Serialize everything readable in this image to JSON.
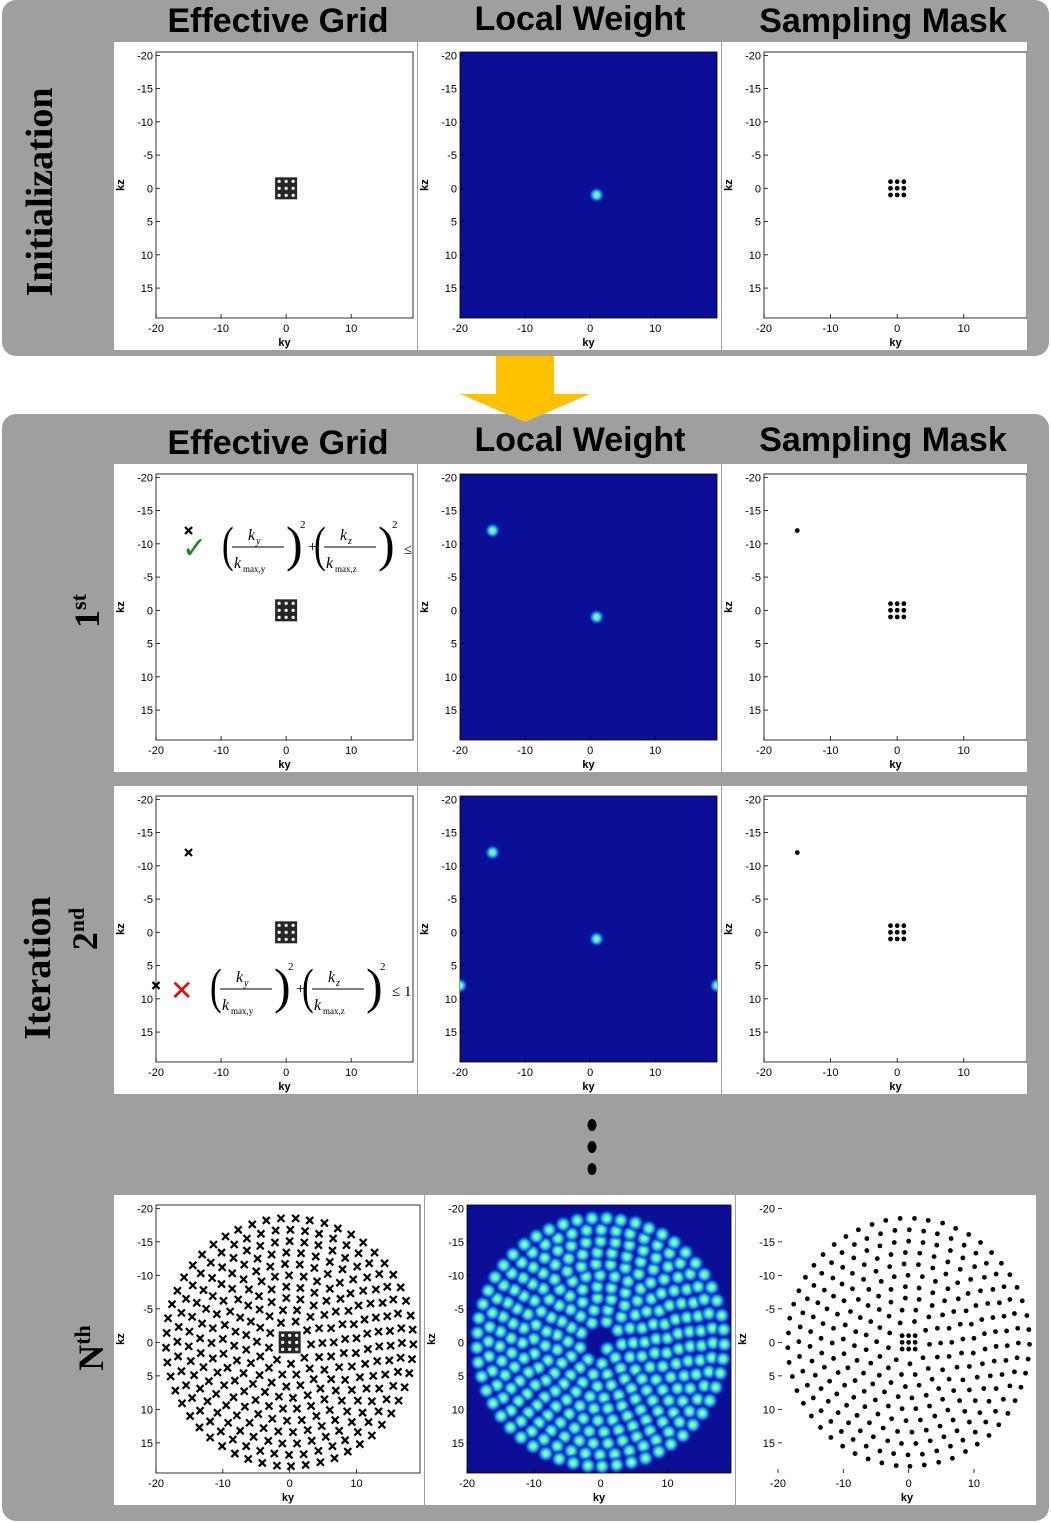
{
  "columns": {
    "effective_grid": "Effective Grid",
    "local_weight": "Local Weight",
    "sampling_mask": "Sampling Mask"
  },
  "sections": {
    "initialization": "Initialization",
    "iteration": "Iteration"
  },
  "rows": [
    {
      "ordinal": "1",
      "suffix": "st"
    },
    {
      "ordinal": "2",
      "suffix": "nd"
    },
    {
      "ordinal": "N",
      "suffix": "th"
    }
  ],
  "axes": {
    "xlabel": "ky",
    "ylabel": "kz",
    "xticks": [
      "-20",
      "-10",
      "0",
      "10"
    ],
    "yticks": [
      "-20",
      "-15",
      "-10",
      "-5",
      "0",
      "5",
      "10",
      "15"
    ]
  },
  "formula": {
    "num_y": "k",
    "sub_y": "y",
    "den_y": "k",
    "den_sub_y": "max,y",
    "num_z": "k",
    "sub_z": "z",
    "den_z": "k",
    "den_sub_z": "max,z",
    "power": "2",
    "plus": "+",
    "relation": "≤ 1"
  },
  "check_glyph": "✓",
  "cross_glyph": "✕",
  "colors": {
    "panel": "#9f9f9f",
    "arrow": "#ffc000",
    "weight_bg": "#0a0f96",
    "check": "#1a8a1a",
    "cross": "#e01010"
  }
}
